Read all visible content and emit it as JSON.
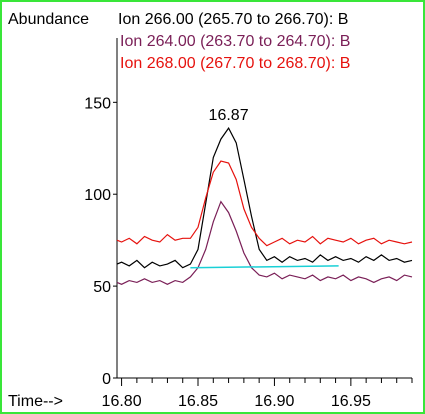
{
  "chart_data": {
    "type": "line",
    "ylabel": "Abundance",
    "xlabel": "Time-->",
    "xlim": [
      16.797,
      16.99
    ],
    "ylim": [
      0,
      185
    ],
    "x_ticks": [
      "16.80",
      "16.85",
      "16.90",
      "16.95"
    ],
    "y_ticks": [
      "0",
      "50",
      "100",
      "150"
    ],
    "peak_label": "16.87",
    "colors": {
      "frame": "#39e639",
      "baseline": "#19d0d6"
    },
    "legend": [
      {
        "text": "Ion 266.00 (265.70 to 266.70): B",
        "color": "#000000"
      },
      {
        "text": "Ion 264.00 (263.70 to 264.70): B",
        "color": "#7a1f57"
      },
      {
        "text": "Ion 268.00 (267.70 to 268.70): B",
        "color": "#e6120e"
      }
    ],
    "series": [
      {
        "color": "#000000",
        "x": [
          16.797,
          16.8,
          16.805,
          16.81,
          16.815,
          16.82,
          16.825,
          16.83,
          16.835,
          16.84,
          16.845,
          16.85,
          16.855,
          16.86,
          16.865,
          16.87,
          16.875,
          16.88,
          16.885,
          16.89,
          16.895,
          16.9,
          16.905,
          16.91,
          16.915,
          16.92,
          16.925,
          16.93,
          16.935,
          16.94,
          16.945,
          16.95,
          16.955,
          16.96,
          16.965,
          16.97,
          16.975,
          16.98,
          16.985,
          16.99
        ],
        "y": [
          62,
          63,
          61,
          64,
          60,
          63,
          61,
          62,
          64,
          60,
          62,
          70,
          95,
          120,
          130,
          136,
          128,
          108,
          88,
          70,
          64,
          66,
          63,
          66,
          64,
          65,
          63,
          67,
          64,
          66,
          64,
          65,
          63,
          66,
          64,
          67,
          64,
          65,
          63,
          64
        ]
      },
      {
        "color": "#7a1f57",
        "x": [
          16.797,
          16.8,
          16.805,
          16.81,
          16.815,
          16.82,
          16.825,
          16.83,
          16.835,
          16.84,
          16.845,
          16.85,
          16.855,
          16.86,
          16.865,
          16.87,
          16.875,
          16.88,
          16.885,
          16.89,
          16.895,
          16.9,
          16.905,
          16.91,
          16.915,
          16.92,
          16.925,
          16.93,
          16.935,
          16.94,
          16.945,
          16.95,
          16.955,
          16.96,
          16.965,
          16.97,
          16.975,
          16.98,
          16.985,
          16.99
        ],
        "y": [
          52,
          51,
          53,
          52,
          54,
          52,
          53,
          51,
          53,
          52,
          55,
          60,
          70,
          85,
          96,
          90,
          80,
          68,
          60,
          56,
          55,
          57,
          54,
          56,
          55,
          54,
          56,
          53,
          55,
          54,
          56,
          53,
          55,
          54,
          52,
          54,
          55,
          53,
          56,
          55
        ]
      },
      {
        "color": "#e6120e",
        "x": [
          16.797,
          16.8,
          16.805,
          16.81,
          16.815,
          16.82,
          16.825,
          16.83,
          16.835,
          16.84,
          16.845,
          16.85,
          16.855,
          16.86,
          16.865,
          16.87,
          16.875,
          16.88,
          16.885,
          16.89,
          16.895,
          16.9,
          16.905,
          16.91,
          16.915,
          16.92,
          16.925,
          16.93,
          16.935,
          16.94,
          16.945,
          16.95,
          16.955,
          16.96,
          16.965,
          16.97,
          16.975,
          16.98,
          16.985,
          16.99
        ],
        "y": [
          75,
          74,
          76,
          73,
          77,
          75,
          74,
          78,
          75,
          76,
          76,
          82,
          98,
          112,
          118,
          117,
          108,
          92,
          82,
          76,
          72,
          74,
          76,
          73,
          75,
          74,
          77,
          73,
          76,
          75,
          74,
          76,
          73,
          75,
          76,
          73,
          75,
          74,
          73,
          74
        ]
      }
    ],
    "baseline": {
      "x": [
        16.845,
        16.942
      ],
      "y": [
        60,
        61
      ]
    }
  }
}
